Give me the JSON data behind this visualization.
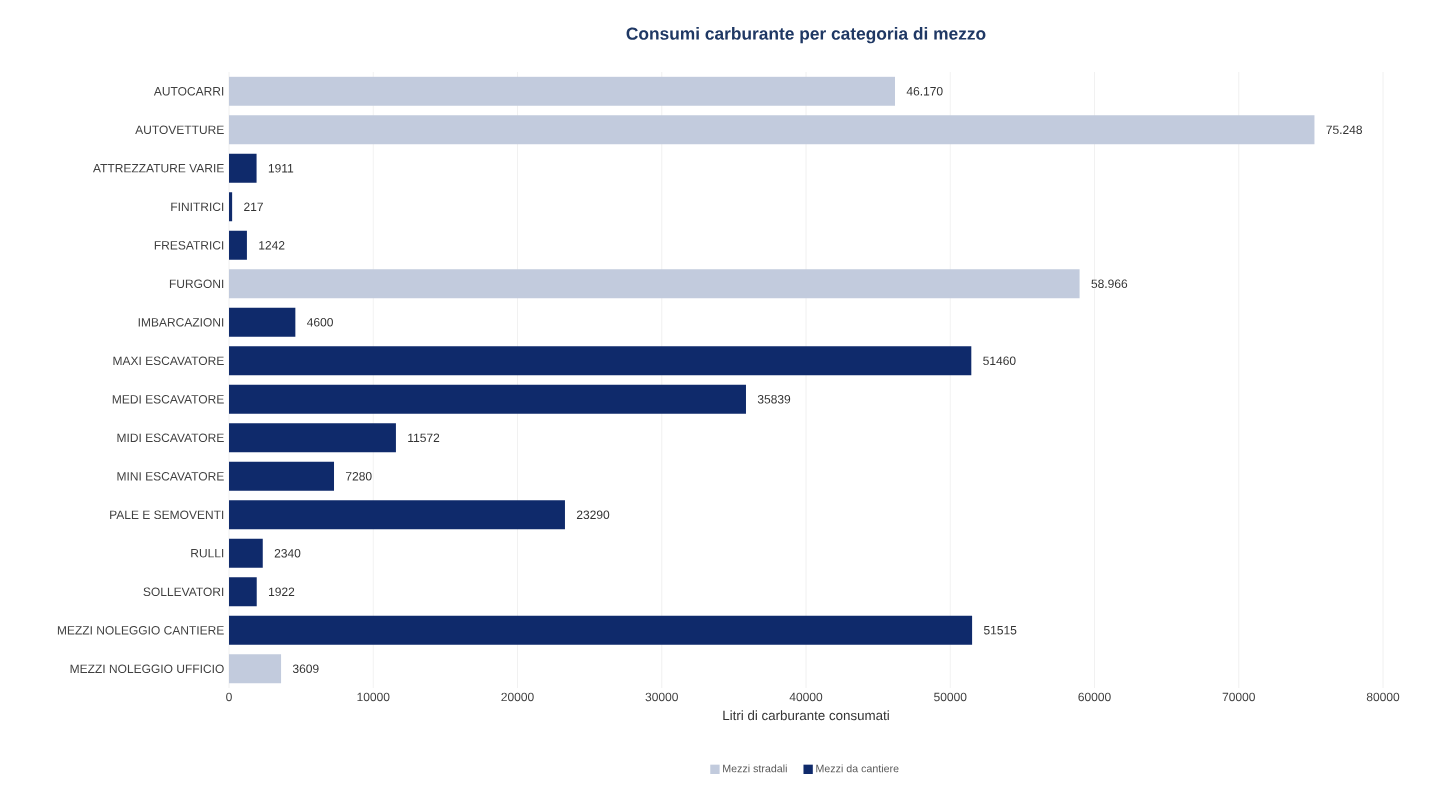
{
  "chart_data": {
    "type": "bar",
    "orientation": "horizontal",
    "title": "Consumi carburante per categoria di mezzo",
    "xlabel": "Litri di carburante consumati",
    "categories": [
      "AUTOCARRI",
      "AUTOVETTURE",
      "ATTREZZATURE VARIE",
      "FINITRICI",
      "FRESATRICI",
      "FURGONI",
      "IMBARCAZIONI",
      "MAXI ESCAVATORE",
      "MEDI ESCAVATORE",
      "MIDI ESCAVATORE",
      "MINI ESCAVATORE",
      "PALE E SEMOVENTI",
      "RULLI",
      "SOLLEVATORI",
      "MEZZI NOLEGGIO CANTIERE",
      "MEZZI NOLEGGIO UFFICIO"
    ],
    "series": [
      {
        "name": "Mezzi stradali",
        "color": "#c2cbdd",
        "values": [
          46170,
          75248,
          null,
          null,
          null,
          58966,
          null,
          null,
          null,
          null,
          null,
          null,
          null,
          null,
          null,
          3609
        ],
        "value_labels": [
          "46.170",
          "75.248",
          null,
          null,
          null,
          "58.966",
          null,
          null,
          null,
          null,
          null,
          null,
          null,
          null,
          null,
          "3609"
        ]
      },
      {
        "name": "Mezzi da cantiere",
        "color": "#0f2a6b",
        "values": [
          null,
          null,
          1911,
          217,
          1242,
          null,
          4600,
          51460,
          35839,
          11572,
          7280,
          23290,
          2340,
          1922,
          51515,
          null
        ],
        "value_labels": [
          null,
          null,
          "1911",
          "217",
          "1242",
          null,
          "4600",
          "51460",
          "35839",
          "11572",
          "7280",
          "23290",
          "2340",
          "1922",
          "51515",
          null
        ]
      }
    ],
    "xlim": [
      0,
      80000
    ],
    "xticks": [
      0,
      10000,
      20000,
      30000,
      40000,
      50000,
      60000,
      70000,
      80000
    ],
    "grid": "x",
    "legend": "bottom"
  }
}
